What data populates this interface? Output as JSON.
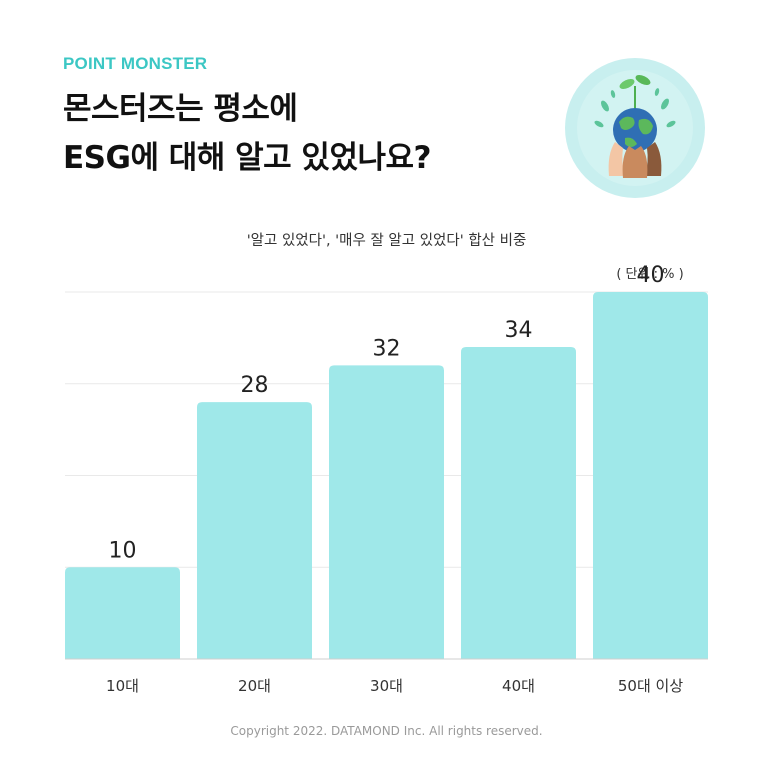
{
  "brand": "POINT MONSTER",
  "headline": [
    "몬스터즈는 평소에",
    "ESG에 대해 알고 있었나요?"
  ],
  "copyright": "Copyright 2022. DATAMOND Inc. All rights reserved.",
  "colors": {
    "accent": "#3cc7c4",
    "bar": "#9fe8e9",
    "grid": "#e9e9e9",
    "text": "#222222"
  },
  "chart_data": {
    "type": "bar",
    "title": "'알고 있었다', '매우 잘 알고 있었다' 합산 비중",
    "unit_label": "( 단위 : % )",
    "categories": [
      "10대",
      "20대",
      "30대",
      "40대",
      "50대 이상"
    ],
    "values": [
      10,
      28,
      32,
      34,
      40
    ],
    "ylim": [
      0,
      40
    ],
    "grid": true,
    "data_labels": true
  }
}
